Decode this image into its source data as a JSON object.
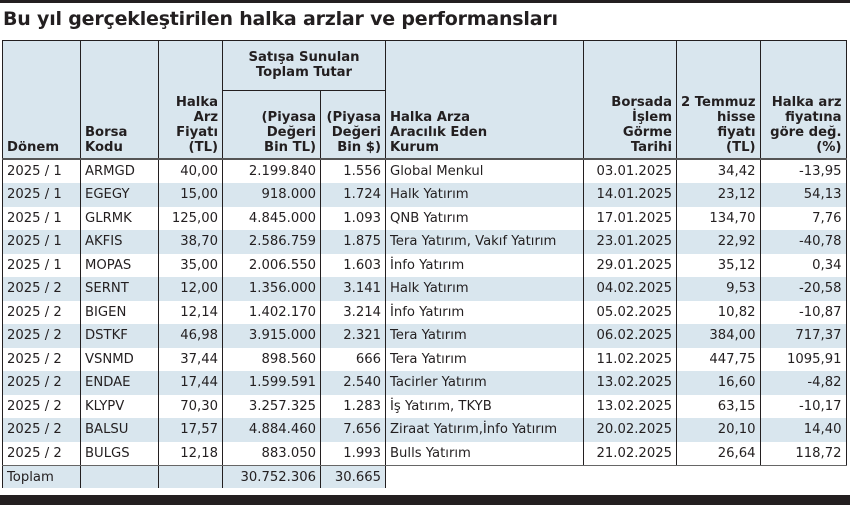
{
  "title": "Bu yıl gerçekleştirilen halka arzlar ve performansları",
  "header": {
    "donem": "Dönem",
    "borsa_kodu": [
      "Borsa",
      "Kodu"
    ],
    "halka_arz_fiyati": [
      "Halka",
      "Arz",
      "Fiyatı",
      "(TL)"
    ],
    "satisa_sunulan": [
      "Satışa Sunulan",
      "Toplam Tutar"
    ],
    "piyasa_tl": [
      "(Piyasa",
      "Değeri",
      "Bin TL)"
    ],
    "piyasa_usd": [
      "(Piyasa",
      "Değeri",
      "Bin $)"
    ],
    "kurum": [
      "Halka Arza",
      "Aracılık Eden",
      "Kurum"
    ],
    "tarih": [
      "Borsada",
      "İşlem",
      "Görme",
      "Tarihi"
    ],
    "hisse_fiyati": [
      "2 Temmuz",
      "hisse",
      "fiyatı",
      "(TL)"
    ],
    "degisim": [
      "Halka arz",
      "fiyatına",
      "göre değ.",
      "(%)"
    ]
  },
  "rows": [
    {
      "donem": "2025 / 1",
      "kod": "ARMGD",
      "fiyat": "40,00",
      "tl": "2.199.840",
      "usd": "1.556",
      "kurum": "Global Menkul",
      "tarih": "03.01.2025",
      "hisse": "34,42",
      "degisim": "-13,95"
    },
    {
      "donem": "2025 / 1",
      "kod": "EGEGY",
      "fiyat": "15,00",
      "tl": "918.000",
      "usd": "1.724",
      "kurum": "Halk Yatırım",
      "tarih": "14.01.2025",
      "hisse": "23,12",
      "degisim": "54,13"
    },
    {
      "donem": "2025 / 1",
      "kod": "GLRMK",
      "fiyat": "125,00",
      "tl": "4.845.000",
      "usd": "1.093",
      "kurum": "QNB Yatırım",
      "tarih": "17.01.2025",
      "hisse": "134,70",
      "degisim": "7,76"
    },
    {
      "donem": "2025 / 1",
      "kod": "AKFIS",
      "fiyat": "38,70",
      "tl": "2.586.759",
      "usd": "1.875",
      "kurum": "Tera Yatırım, Vakıf Yatırım",
      "tarih": "23.01.2025",
      "hisse": "22,92",
      "degisim": "-40,78"
    },
    {
      "donem": "2025 / 1",
      "kod": "MOPAS",
      "fiyat": "35,00",
      "tl": "2.006.550",
      "usd": "1.603",
      "kurum": "İnfo Yatırım",
      "tarih": "29.01.2025",
      "hisse": "35,12",
      "degisim": "0,34"
    },
    {
      "donem": "2025 / 2",
      "kod": "SERNT",
      "fiyat": "12,00",
      "tl": "1.356.000",
      "usd": "3.141",
      "kurum": "Halk Yatırım",
      "tarih": "04.02.2025",
      "hisse": "9,53",
      "degisim": "-20,58"
    },
    {
      "donem": "2025 / 2",
      "kod": "BIGEN",
      "fiyat": "12,14",
      "tl": "1.402.170",
      "usd": "3.214",
      "kurum": "İnfo Yatırım",
      "tarih": "05.02.2025",
      "hisse": "10,82",
      "degisim": "-10,87"
    },
    {
      "donem": "2025 / 2",
      "kod": "DSTKF",
      "fiyat": "46,98",
      "tl": "3.915.000",
      "usd": "2.321",
      "kurum": "Tera Yatırım",
      "tarih": "06.02.2025",
      "hisse": "384,00",
      "degisim": "717,37"
    },
    {
      "donem": "2025 / 2",
      "kod": "VSNMD",
      "fiyat": "37,44",
      "tl": "898.560",
      "usd": "666",
      "kurum": "Tera Yatırım",
      "tarih": "11.02.2025",
      "hisse": "447,75",
      "degisim": "1095,91"
    },
    {
      "donem": "2025 / 2",
      "kod": "ENDAE",
      "fiyat": "17,44",
      "tl": "1.599.591",
      "usd": "2.540",
      "kurum": "Tacirler Yatırım",
      "tarih": "13.02.2025",
      "hisse": "16,60",
      "degisim": "-4,82"
    },
    {
      "donem": "2025 / 2",
      "kod": "KLYPV",
      "fiyat": "70,30",
      "tl": "3.257.325",
      "usd": "1.283",
      "kurum": "İş Yatırım, TKYB",
      "tarih": "13.02.2025",
      "hisse": "63,15",
      "degisim": "-10,17"
    },
    {
      "donem": "2025 / 2",
      "kod": "BALSU",
      "fiyat": "17,57",
      "tl": "4.884.460",
      "usd": "7.656",
      "kurum": "Ziraat Yatırım,İnfo Yatırım",
      "tarih": "20.02.2025",
      "hisse": "20,10",
      "degisim": "14,40"
    },
    {
      "donem": "2025 / 2",
      "kod": "BULGS",
      "fiyat": "12,18",
      "tl": "883.050",
      "usd": "1.993",
      "kurum": "Bulls Yatırım",
      "tarih": "21.02.2025",
      "hisse": "26,64",
      "degisim": "118,72"
    }
  ],
  "total": {
    "label": "Toplam",
    "tl": "30.752.306",
    "usd": "30.665"
  }
}
